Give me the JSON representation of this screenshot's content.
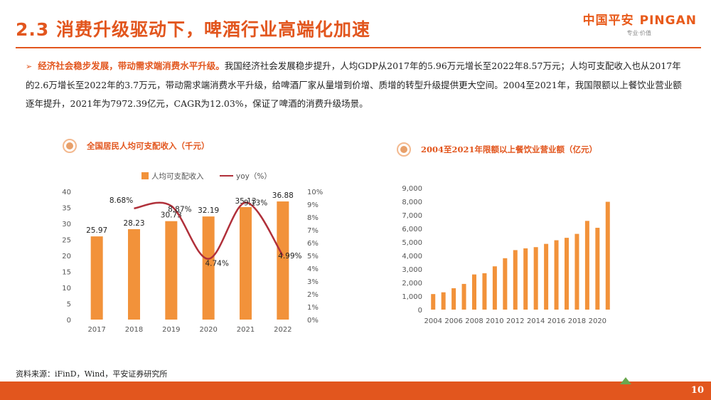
{
  "header": {
    "title": "2.3 消费升级驱动下，啤酒行业高端化加速",
    "logo_cn": "中国平安",
    "logo_en": "PINGAN",
    "logo_sub": "专业·价值"
  },
  "summary": {
    "highlight": "经济社会稳步发展，带动需求端消费水平升级。",
    "body": "我国经济社会发展稳步提升，人均GDP从2017年的5.96万元增长至2022年8.57万元；人均可支配收入也从2017年的2.6万增长至2022年的3.7万元，带动需求端消费水平升级，给啤酒厂家从量增到价增、质增的转型升级提供更大空间。2004至2021年，我国限额以上餐饮业营业额逐年提升，2021年为7972.39亿元，CAGR为12.03%，保证了啤酒的消费升级场景。"
  },
  "left_chart_title": "全国居民人均可支配收入（千元）",
  "right_chart_title": "2004至2021年限额以上餐饮业营业额（亿元）",
  "source": "资料来源：iFinD，Wind，平安证券研究所",
  "page_number": "10",
  "colors": {
    "accent": "#e2561e",
    "bar": "#f2923a",
    "line": "#b0303a"
  },
  "chart_data": [
    {
      "type": "bar",
      "categories": [
        "2017",
        "2018",
        "2019",
        "2020",
        "2021",
        "2022"
      ],
      "series": [
        {
          "name": "人均可支配收入",
          "type": "bar",
          "axis": "left",
          "values": [
            25.97,
            28.23,
            30.73,
            32.19,
            35.13,
            36.88
          ]
        },
        {
          "name": "yoy（%）",
          "type": "line",
          "axis": "right",
          "values": [
            null,
            8.68,
            8.87,
            4.74,
            9.13,
            4.99
          ]
        }
      ],
      "bar_labels": [
        "25.97",
        "28.23",
        "30.73",
        "32.19",
        "35.13",
        "36.88"
      ],
      "line_labels": [
        "",
        "8.68%",
        "8.87%",
        "4.74%",
        "9.13%",
        "4.99%"
      ],
      "ylim": [
        0,
        40
      ],
      "yticks": [
        "0",
        "5",
        "10",
        "15",
        "20",
        "25",
        "30",
        "35",
        "40"
      ],
      "y2lim": [
        0,
        10
      ],
      "y2ticks": [
        "0%",
        "1%",
        "2%",
        "3%",
        "4%",
        "5%",
        "6%",
        "7%",
        "8%",
        "9%",
        "10%"
      ],
      "legend": "top",
      "grid": false
    },
    {
      "type": "bar",
      "categories": [
        "2004",
        "2005",
        "2006",
        "2007",
        "2008",
        "2009",
        "2010",
        "2011",
        "2012",
        "2013",
        "2014",
        "2015",
        "2016",
        "2017",
        "2018",
        "2019",
        "2020",
        "2021"
      ],
      "xticks": [
        "2004",
        "2006",
        "2008",
        "2010",
        "2012",
        "2014",
        "2016",
        "2018",
        "2020"
      ],
      "values": [
        1150,
        1280,
        1580,
        1900,
        2600,
        2690,
        3200,
        3800,
        4400,
        4530,
        4620,
        4860,
        5130,
        5310,
        5600,
        6560,
        6050,
        7972.39
      ],
      "ylim": [
        0,
        9000
      ],
      "yticks": [
        "0",
        "1,000",
        "2,000",
        "3,000",
        "4,000",
        "5,000",
        "6,000",
        "7,000",
        "8,000",
        "9,000"
      ],
      "grid": false
    }
  ]
}
